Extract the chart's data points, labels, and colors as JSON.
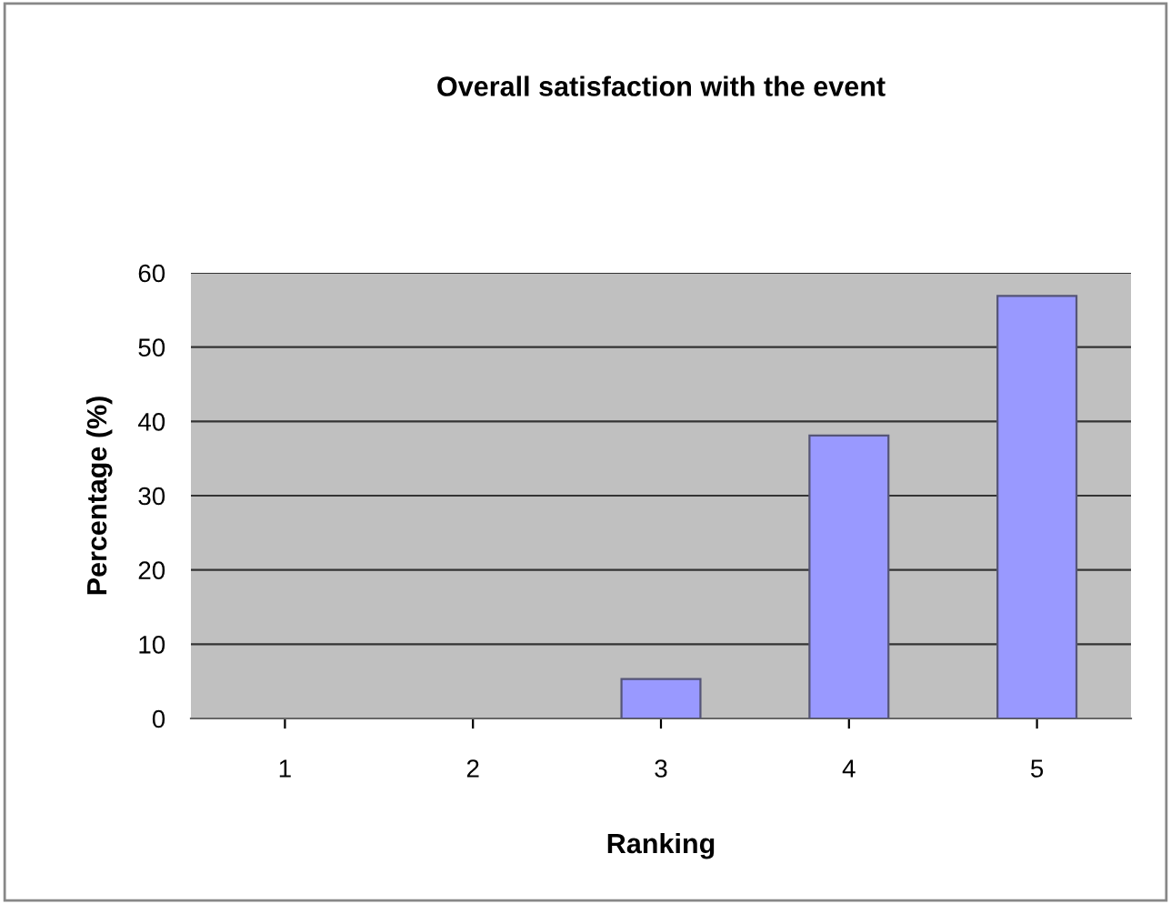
{
  "chart_data": {
    "type": "bar",
    "title": "Overall satisfaction with the event",
    "xlabel": "Ranking",
    "ylabel": "Percentage (%)",
    "categories": [
      "1",
      "2",
      "3",
      "4",
      "5"
    ],
    "values": [
      0,
      0,
      5.3,
      38.1,
      56.9
    ],
    "color": "#9999ff",
    "ylim": [
      0,
      60
    ],
    "yticks": [
      0,
      10,
      20,
      30,
      40,
      50,
      60
    ],
    "grid": "y"
  }
}
